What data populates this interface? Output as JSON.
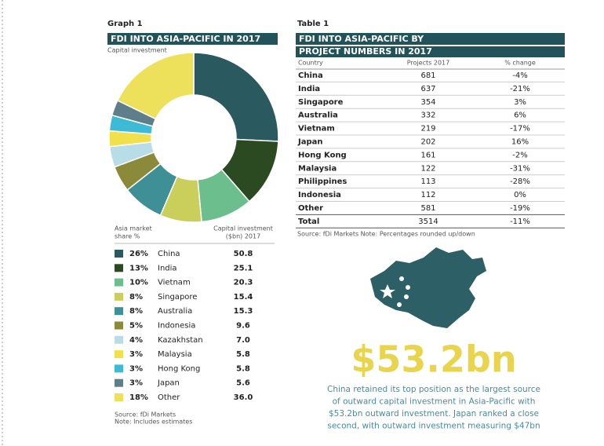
{
  "chart_data": {
    "type": "pie",
    "label": "Graph 1",
    "title": "FDI INTO ASIA-PACIFIC IN 2017",
    "subtitle": "Capital investment",
    "categories": [
      "China",
      "India",
      "Vietnam",
      "Singapore",
      "Australia",
      "Indonesia",
      "Kazakhstan",
      "Malaysia",
      "Hong Kong",
      "Japan",
      "Other"
    ],
    "values": [
      26,
      13,
      10,
      8,
      8,
      5,
      4,
      3,
      3,
      3,
      18
    ],
    "value_labels": [
      "26%",
      "13%",
      "10%",
      "8%",
      "8%",
      "5%",
      "4%",
      "3%",
      "3%",
      "3%",
      "18%"
    ],
    "colors": [
      "#2a5a60",
      "#2c4a22",
      "#6cbf8c",
      "#c9cf5a",
      "#3e8f96",
      "#8a8a3a",
      "#b8dde6",
      "#efe04c",
      "#3dbbd6",
      "#5e7f8a",
      "#ede05a"
    ],
    "capital_investment": [
      "50.8",
      "25.1",
      "20.3",
      "15.4",
      "15.3",
      "9.6",
      "7.0",
      "5.8",
      "5.8",
      "5.6",
      "36.0"
    ],
    "legend_header_share": [
      "Asia market",
      "share %"
    ],
    "legend_header_capital": [
      "Capital investment",
      "($bn) 2017"
    ],
    "source": [
      "Source: fDi Markets",
      "Note: Includes estimates"
    ]
  },
  "table": {
    "label": "Table 1",
    "title": [
      "FDI INTO ASIA-PACIFIC BY",
      "PROJECT NUMBERS IN 2017"
    ],
    "columns": [
      "Country",
      "Projects 2017",
      "% change"
    ],
    "rows": [
      [
        "China",
        "681",
        "-4%"
      ],
      [
        "India",
        "637",
        "-21%"
      ],
      [
        "Singapore",
        "354",
        "3%"
      ],
      [
        "Australia",
        "332",
        "6%"
      ],
      [
        "Vietnam",
        "219",
        "-17%"
      ],
      [
        "Japan",
        "202",
        "16%"
      ],
      [
        "Hong Kong",
        "161",
        "-2%"
      ],
      [
        "Malaysia",
        "122",
        "-31%"
      ],
      [
        "Philippines",
        "113",
        "-28%"
      ],
      [
        "Indonesia",
        "112",
        "0%"
      ],
      [
        "Other",
        "581",
        "-19%"
      ],
      [
        "Total",
        "3514",
        "-11%"
      ]
    ],
    "source": "Source: fDi Markets   Note: Percentages rounded up/down"
  },
  "highlight": {
    "figure": "$53.2bn",
    "text": [
      "China retained its top position as the largest source",
      "of outward capital investment in Asia-Pacific with",
      "$53.2bn outward investment. Japan ranked a close",
      "second, with outward investment measuring $47bn"
    ]
  }
}
